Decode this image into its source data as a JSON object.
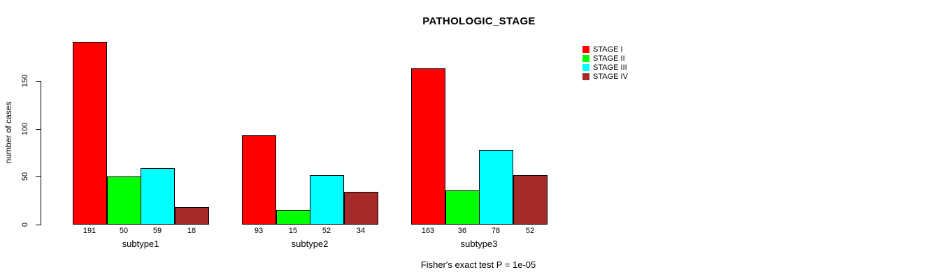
{
  "chart_data": {
    "type": "bar",
    "title": "PATHOLOGIC_STAGE",
    "ylabel": "number of cases",
    "xlabel": "",
    "categories": [
      "subtype1",
      "subtype2",
      "subtype3"
    ],
    "series": [
      {
        "name": "STAGE I",
        "color": "#ff0000",
        "values": [
          191,
          93,
          163
        ]
      },
      {
        "name": "STAGE II",
        "color": "#00ff00",
        "values": [
          50,
          15,
          36
        ]
      },
      {
        "name": "STAGE III",
        "color": "#00ffff",
        "values": [
          59,
          52,
          78
        ]
      },
      {
        "name": "STAGE IV",
        "color": "#a52a2a",
        "values": [
          18,
          34,
          52
        ]
      }
    ],
    "yticks": [
      0,
      50,
      100,
      150
    ],
    "ylim": [
      0,
      191
    ],
    "bar_value_labels_shown": true,
    "grid": false,
    "legend_position": "top-right",
    "annotation": "Fisher's exact test P = 1e-05"
  }
}
